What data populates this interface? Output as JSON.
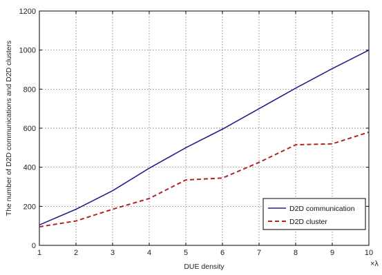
{
  "chart_data": {
    "type": "line",
    "title": "",
    "xlabel": "DUE density",
    "ylabel": "The number of D2D communications and D2D clusters",
    "x_multiplier": "×λ",
    "x": [
      1,
      2,
      3,
      4,
      5,
      6,
      7,
      8,
      9,
      10
    ],
    "xlim": [
      1,
      10
    ],
    "ylim": [
      0,
      1200
    ],
    "xticks": [
      "1",
      "2",
      "3",
      "4",
      "5",
      "6",
      "7",
      "8",
      "9",
      "10"
    ],
    "yticks": [
      "0",
      "200",
      "400",
      "600",
      "800",
      "1000",
      "1200"
    ],
    "grid": true,
    "legend_position": "bottom-right",
    "series": [
      {
        "name": "D2D communication",
        "color": "#1f1f8c",
        "style": "solid",
        "values": [
          105,
          185,
          280,
          395,
          500,
          595,
          700,
          805,
          905,
          1000
        ]
      },
      {
        "name": "D2D cluster",
        "color": "#b22222",
        "style": "dashed",
        "values": [
          95,
          125,
          185,
          240,
          335,
          345,
          425,
          515,
          520,
          580
        ]
      }
    ]
  }
}
